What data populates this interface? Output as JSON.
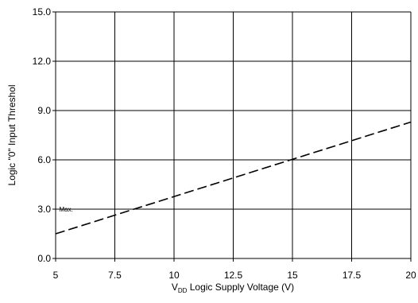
{
  "chart_data": {
    "type": "line",
    "xlabel_main": "V",
    "xlabel_sub": "DD",
    "xlabel_rest": " Logic Supply Voltage (V)",
    "ylabel": "Logic \"0\" Input Threshol",
    "xlim": [
      5,
      20
    ],
    "ylim": [
      0,
      15
    ],
    "x_ticks": [
      5,
      7.5,
      10,
      12.5,
      15,
      17.5,
      20
    ],
    "x_tick_labels": [
      "5",
      "7.5",
      "10",
      "12.5",
      "15",
      "17.5",
      "20"
    ],
    "y_ticks": [
      0,
      3,
      6,
      9,
      12,
      15
    ],
    "y_tick_labels": [
      "0.0",
      "3.0",
      "6.0",
      "9.0",
      "12.0",
      "15.0"
    ],
    "grid": true,
    "series": [
      {
        "name": "Max.",
        "x": [
          5,
          20
        ],
        "y": [
          1.5,
          8.3
        ],
        "style": "dashed",
        "color": "#000000"
      }
    ],
    "annotations": [
      {
        "text": "Max.",
        "x": 5.15,
        "y": 2.85
      }
    ]
  }
}
